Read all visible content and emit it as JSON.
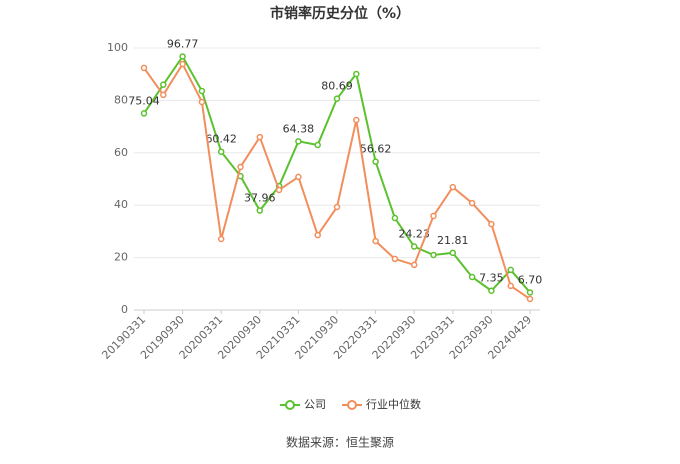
{
  "chart_data": {
    "type": "line",
    "title": "市销率历史分位（%）",
    "source": "数据来源：恒生聚源",
    "categories": [
      "20190331",
      null,
      "20190930",
      null,
      "20200331",
      null,
      "20200930",
      null,
      "20210331",
      null,
      "20210930",
      null,
      "20220331",
      null,
      "20220930",
      null,
      "20230331",
      null,
      "20230930",
      null,
      "20240429"
    ],
    "series": [
      {
        "name": "公司",
        "color": "#5cc12f",
        "values": [
          75.04,
          86,
          96.77,
          83.6,
          60.42,
          51.1,
          37.96,
          47.3,
          64.38,
          63,
          80.69,
          90.1,
          56.62,
          35.1,
          24.23,
          21,
          21.81,
          12.6,
          7.35,
          15.3,
          6.7
        ],
        "value_labels": [
          "75.04",
          null,
          "96.77",
          null,
          "60.42",
          null,
          "37.96",
          null,
          "64.38",
          null,
          "80.69",
          null,
          "56.62",
          null,
          "24.23",
          null,
          "21.81",
          null,
          "7.35",
          null,
          "6.70"
        ]
      },
      {
        "name": "行业中位数",
        "color": "#f28e5c",
        "values": [
          92.4,
          82.1,
          93.9,
          79.4,
          27.1,
          54.6,
          66.0,
          45.8,
          50.8,
          28.6,
          39.3,
          72.5,
          26.3,
          19.5,
          17.2,
          35.9,
          46.9,
          40.8,
          32.8,
          9.2,
          4.2
        ]
      }
    ],
    "ylim": [
      0,
      100
    ],
    "yticks": [
      0,
      20,
      40,
      60,
      80,
      100
    ],
    "grid": true
  }
}
